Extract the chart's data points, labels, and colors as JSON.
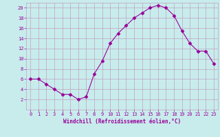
{
  "x": [
    0,
    1,
    2,
    3,
    4,
    5,
    6,
    7,
    8,
    9,
    10,
    11,
    12,
    13,
    14,
    15,
    16,
    17,
    18,
    19,
    20,
    21,
    22,
    23
  ],
  "y": [
    6,
    6,
    5,
    4,
    3,
    3,
    2,
    2.5,
    7,
    9.5,
    13,
    15,
    16.5,
    18,
    19,
    20,
    20.5,
    20,
    18.5,
    15.5,
    13,
    11.5,
    11.5,
    9
  ],
  "line_color": "#990099",
  "marker": "D",
  "marker_size": 2.5,
  "bg_color": "#c8ecec",
  "grid_color": "#c0a0c0",
  "xlabel": "Windchill (Refroidissement éolien,°C)",
  "xlabel_color": "#990099",
  "tick_color": "#990099",
  "ylim": [
    0,
    21
  ],
  "xlim": [
    -0.5,
    23.5
  ],
  "yticks": [
    2,
    4,
    6,
    8,
    10,
    12,
    14,
    16,
    18,
    20
  ],
  "xticks": [
    0,
    1,
    2,
    3,
    4,
    5,
    6,
    7,
    8,
    9,
    10,
    11,
    12,
    13,
    14,
    15,
    16,
    17,
    18,
    19,
    20,
    21,
    22,
    23
  ]
}
